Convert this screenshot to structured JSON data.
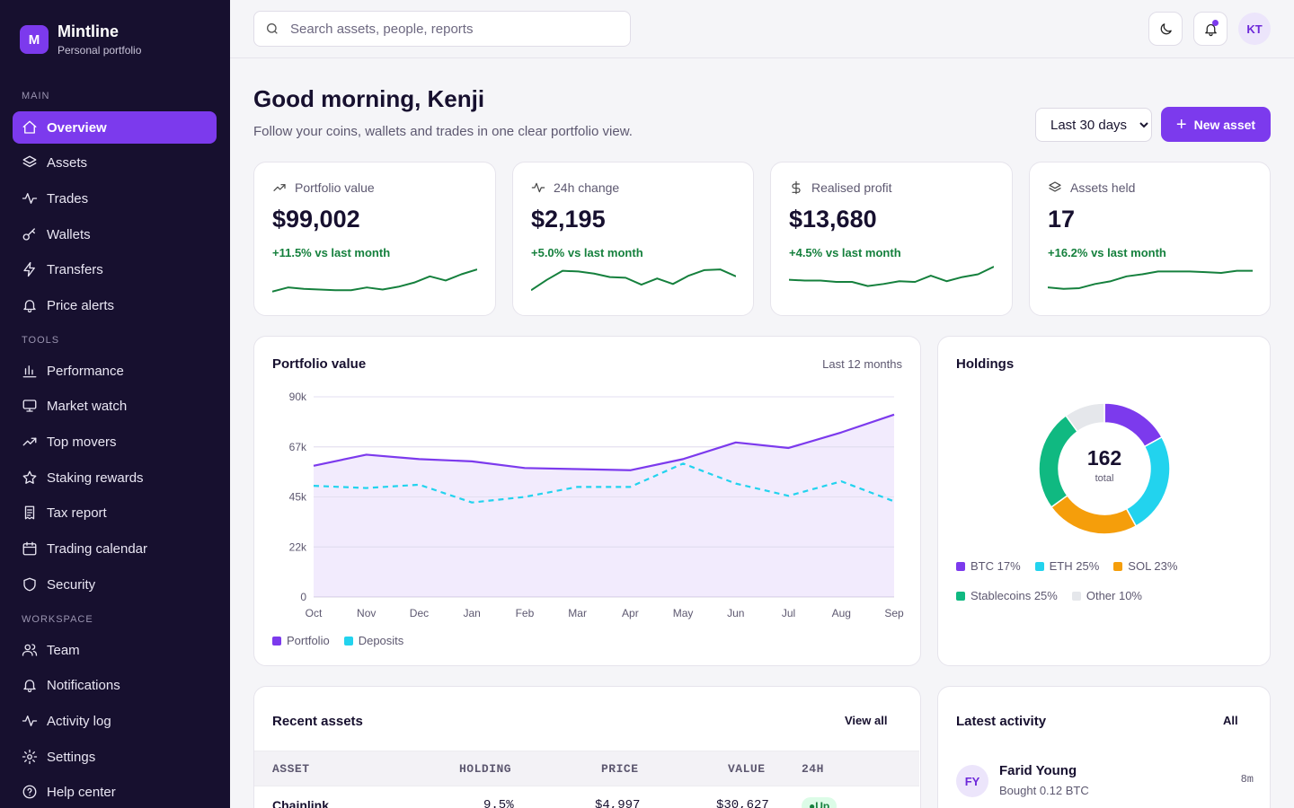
{
  "brand": {
    "logo_letter": "M",
    "name": "Mintline",
    "subtitle": "Personal portfolio"
  },
  "sidebar": {
    "sections": [
      {
        "label": "MAIN"
      },
      {
        "label": "TOOLS"
      },
      {
        "label": "WORKSPACE"
      }
    ],
    "items": [
      {
        "label": "Overview",
        "icon": "home-icon",
        "active": true
      },
      {
        "label": "Assets",
        "icon": "layers-icon"
      },
      {
        "label": "Trades",
        "icon": "activity-icon"
      },
      {
        "label": "Wallets",
        "icon": "key-icon"
      },
      {
        "label": "Transfers",
        "icon": "zap-icon"
      },
      {
        "label": "Price alerts",
        "icon": "bell-icon"
      },
      {
        "label": "Performance",
        "icon": "bar-chart-icon"
      },
      {
        "label": "Market watch",
        "icon": "monitor-icon"
      },
      {
        "label": "Top movers",
        "icon": "trending-up-icon"
      },
      {
        "label": "Staking rewards",
        "icon": "star-icon"
      },
      {
        "label": "Tax report",
        "icon": "receipt-icon"
      },
      {
        "label": "Trading calendar",
        "icon": "calendar-icon"
      },
      {
        "label": "Security",
        "icon": "shield-icon"
      },
      {
        "label": "Team",
        "icon": "users-icon"
      },
      {
        "label": "Notifications",
        "icon": "bell-icon"
      },
      {
        "label": "Activity log",
        "icon": "activity-icon"
      },
      {
        "label": "Settings",
        "icon": "gear-icon"
      },
      {
        "label": "Help center",
        "icon": "help-circle-icon"
      }
    ]
  },
  "topbar": {
    "search_placeholder": "Search assets, people, reports",
    "avatar_initials": "KT"
  },
  "header": {
    "greeting": "Good morning, Kenji",
    "subtitle": "Follow your coins, wallets and trades in one clear portfolio view.",
    "range_selected": "Last 30 days",
    "new_button": "New asset"
  },
  "stats": [
    {
      "label": "Portfolio value",
      "value": "$99,002",
      "change": "+11.5% vs last month",
      "icon": "trending-up-icon",
      "spark": [
        8,
        14,
        12,
        11,
        10,
        10,
        14,
        11,
        15,
        21,
        30,
        24,
        33,
        40
      ]
    },
    {
      "label": "24h change",
      "value": "$2,195",
      "change": "+5.0% vs last month",
      "icon": "activity-icon",
      "spark": [
        10,
        25,
        38,
        37,
        34,
        29,
        28,
        18,
        27,
        19,
        31,
        39,
        40,
        30
      ]
    },
    {
      "label": "Realised profit",
      "value": "$13,680",
      "change": "+4.5% vs last month",
      "icon": "dollar-icon",
      "spark": [
        25,
        24,
        24,
        22,
        22,
        16,
        19,
        23,
        22,
        31,
        23,
        29,
        33,
        44
      ]
    },
    {
      "label": "Assets held",
      "value": "17",
      "change": "+16.2% vs last month",
      "icon": "layers-icon",
      "spark": [
        14,
        12,
        13,
        19,
        23,
        30,
        33,
        37,
        37,
        37,
        36,
        35,
        38,
        38
      ]
    }
  ],
  "portfolio_chart": {
    "title": "Portfolio value",
    "meta": "Last 12 months",
    "legend": [
      {
        "name": "Portfolio",
        "color": "#7c3aed"
      },
      {
        "name": "Deposits",
        "color": "#22d3ee"
      }
    ]
  },
  "chart_data": {
    "type": "area",
    "title": "Portfolio value",
    "categories": [
      "Oct",
      "Nov",
      "Dec",
      "Jan",
      "Feb",
      "Mar",
      "Apr",
      "May",
      "Jun",
      "Jul",
      "Aug",
      "Sep"
    ],
    "y_ticks": [
      "0",
      "22k",
      "45k",
      "67k",
      "90k"
    ],
    "ylim": [
      0,
      90000
    ],
    "series": [
      {
        "name": "Portfolio",
        "values": [
          59000,
          64000,
          62000,
          61000,
          58000,
          57500,
          57000,
          62000,
          69500,
          67000,
          74000,
          82000
        ]
      },
      {
        "name": "Deposits",
        "values": [
          50000,
          49000,
          50500,
          42500,
          45000,
          49500,
          49500,
          60000,
          51000,
          45500,
          52000,
          43000
        ]
      }
    ],
    "grid": true,
    "legend_position": "bottom-left"
  },
  "holdings": {
    "title": "Holdings",
    "total": "162",
    "total_label": "total",
    "segments": [
      {
        "name": "BTC",
        "pct_label": "BTC 17%",
        "value": 17,
        "color": "#7c3aed"
      },
      {
        "name": "ETH",
        "pct_label": "ETH 25%",
        "value": 25,
        "color": "#22d3ee"
      },
      {
        "name": "SOL",
        "pct_label": "SOL 23%",
        "value": 23,
        "color": "#f59e0b"
      },
      {
        "name": "Stablecoins",
        "pct_label": "Stablecoins 25%",
        "value": 25,
        "color": "#10b981"
      },
      {
        "name": "Other",
        "pct_label": "Other 10%",
        "value": 10,
        "color": "#e5e7eb"
      }
    ]
  },
  "recent_assets": {
    "title": "Recent assets",
    "view_all": "View all",
    "columns": [
      "ASSET",
      "HOLDING",
      "PRICE",
      "VALUE",
      "24H"
    ],
    "rows": [
      {
        "asset": "Chainlink",
        "holding": "9.5%",
        "price": "$4,997",
        "value": "$30,627",
        "change": "Up"
      }
    ]
  },
  "activity": {
    "title": "Latest activity",
    "filter": "All",
    "items": [
      {
        "initials": "FY",
        "name": "Farid Young",
        "detail": "Bought 0.12 BTC",
        "time": "8m"
      }
    ]
  }
}
